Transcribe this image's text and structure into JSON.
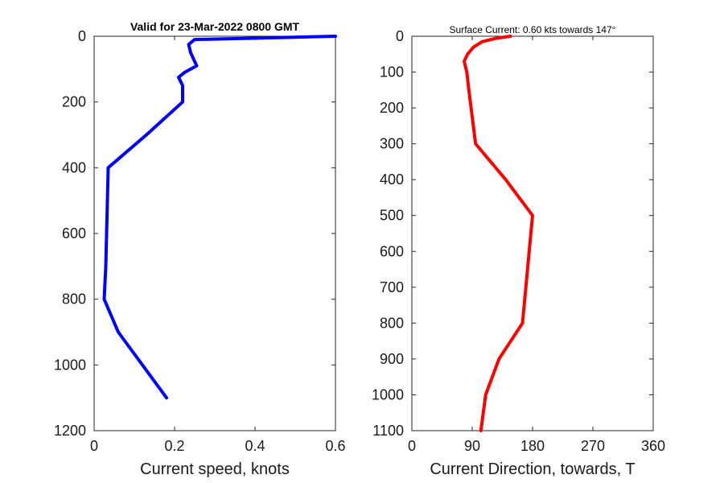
{
  "chart_data": [
    {
      "type": "line",
      "title": "Valid for 23-Mar-2022 0800 GMT",
      "xlabel": "Current speed, knots",
      "ylabel": "",
      "xlim": [
        0,
        0.6
      ],
      "ylim": [
        0,
        1200
      ],
      "y_reversed": true,
      "xticks": [
        "0",
        "0.2",
        "0.4",
        "0.6"
      ],
      "yticks": [
        "0",
        "200",
        "400",
        "600",
        "800",
        "1000",
        "1200"
      ],
      "series": [
        {
          "name": "",
          "color": "#0000ff",
          "points": [
            [
              0.6,
              0
            ],
            [
              0.25,
              10
            ],
            [
              0.235,
              25
            ],
            [
              0.24,
              50
            ],
            [
              0.255,
              90
            ],
            [
              0.225,
              110
            ],
            [
              0.21,
              125
            ],
            [
              0.22,
              150
            ],
            [
              0.22,
              200
            ],
            [
              0.13,
              300
            ],
            [
              0.035,
              400
            ],
            [
              0.033,
              500
            ],
            [
              0.031,
              600
            ],
            [
              0.029,
              700
            ],
            [
              0.025,
              800
            ],
            [
              0.06,
              900
            ],
            [
              0.12,
              1000
            ],
            [
              0.18,
              1100
            ]
          ]
        }
      ]
    },
    {
      "type": "line",
      "title": "Surface Current: 0.60 kts towards 147°",
      "xlabel": "Current Direction, towards, T",
      "ylabel": "",
      "xlim": [
        0,
        360
      ],
      "ylim": [
        0,
        1100
      ],
      "y_reversed": true,
      "xticks": [
        "0",
        "90",
        "180",
        "270",
        "360"
      ],
      "yticks": [
        "0",
        "100",
        "200",
        "300",
        "400",
        "500",
        "600",
        "700",
        "800",
        "900",
        "1000",
        "1100"
      ],
      "series": [
        {
          "name": "",
          "color": "#ff0000",
          "points": [
            [
              147,
              0
            ],
            [
              125,
              6
            ],
            [
              105,
              15
            ],
            [
              92,
              30
            ],
            [
              83,
              50
            ],
            [
              78,
              70
            ],
            [
              82,
              100
            ],
            [
              85,
              150
            ],
            [
              95,
              300
            ],
            [
              140,
              400
            ],
            [
              180,
              500
            ],
            [
              175,
              600
            ],
            [
              170,
              700
            ],
            [
              165,
              800
            ],
            [
              130,
              900
            ],
            [
              110,
              1000
            ],
            [
              103,
              1100
            ]
          ]
        }
      ]
    }
  ]
}
